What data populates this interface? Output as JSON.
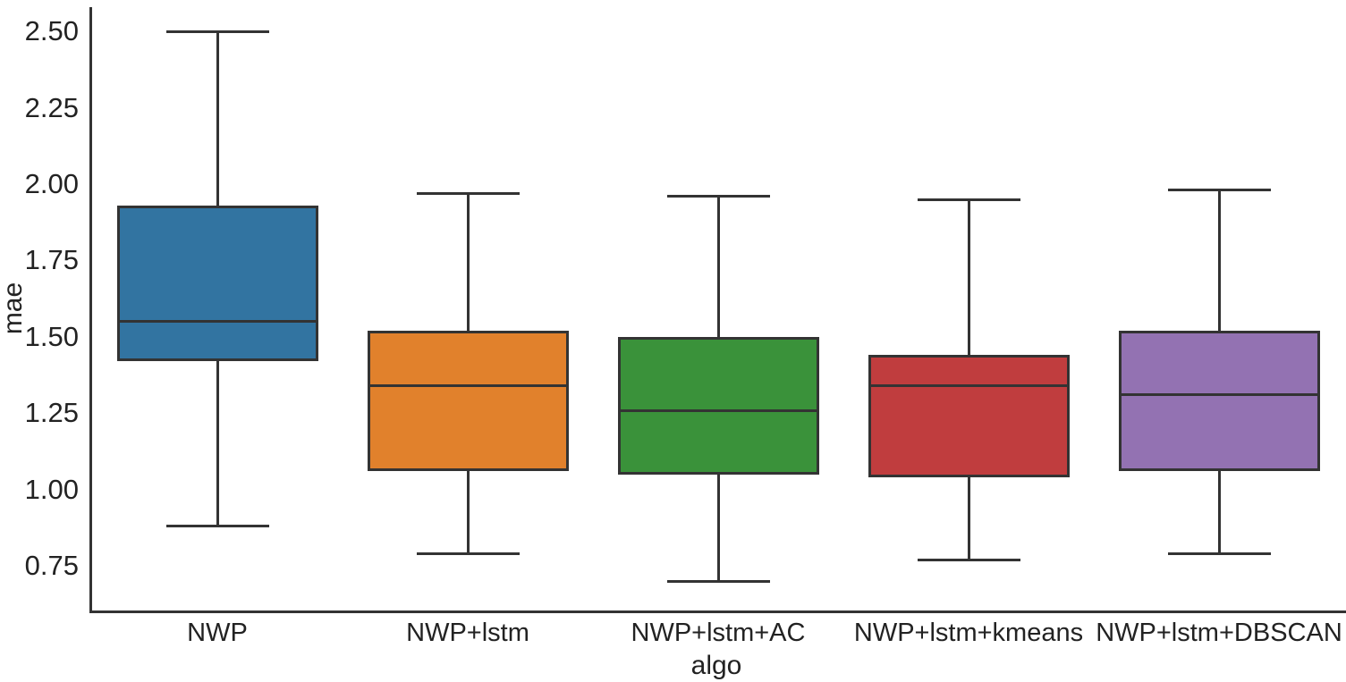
{
  "chart_data": {
    "type": "box",
    "title": "",
    "xlabel": "algo",
    "ylabel": "mae",
    "categories": [
      "NWP",
      "NWP+lstm",
      "NWP+lstm+AC",
      "NWP+lstm+kmeans",
      "NWP+lstm+DBSCAN"
    ],
    "series": [
      {
        "name": "NWP",
        "color": "#3274a1",
        "whislo": 0.88,
        "q1": 1.42,
        "med": 1.55,
        "q3": 1.93,
        "whishi": 2.5
      },
      {
        "name": "NWP+lstm",
        "color": "#e1812c",
        "whislo": 0.79,
        "q1": 1.06,
        "med": 1.34,
        "q3": 1.52,
        "whishi": 1.97
      },
      {
        "name": "NWP+lstm+AC",
        "color": "#3a923a",
        "whislo": 0.7,
        "q1": 1.05,
        "med": 1.26,
        "q3": 1.5,
        "whishi": 1.96
      },
      {
        "name": "NWP+lstm+kmeans",
        "color": "#c03d3e",
        "whislo": 0.77,
        "q1": 1.04,
        "med": 1.34,
        "q3": 1.44,
        "whishi": 1.95
      },
      {
        "name": "NWP+lstm+DBSCAN",
        "color": "#9372b2",
        "whislo": 0.79,
        "q1": 1.06,
        "med": 1.31,
        "q3": 1.52,
        "whishi": 1.98
      }
    ],
    "yticks": [
      "0.75",
      "1.00",
      "1.25",
      "1.50",
      "1.75",
      "2.00",
      "2.25",
      "2.50"
    ],
    "ylim": [
      0.605,
      2.579
    ],
    "grid": false,
    "legend": "none",
    "line_color": "#333333",
    "orientation": "vertical"
  }
}
